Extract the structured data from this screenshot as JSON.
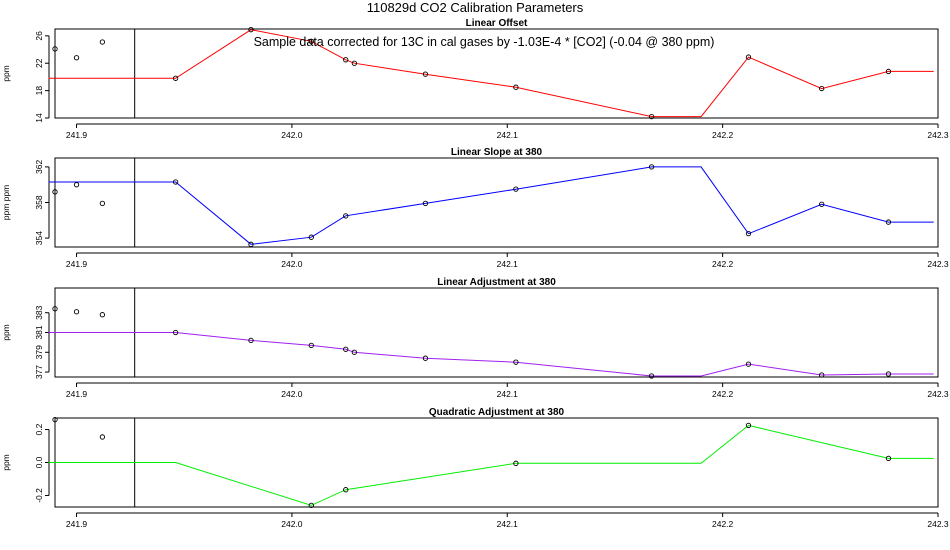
{
  "title": "110829d   CO2 Calibration Parameters",
  "note": "Sample data corrected for 13C in cal gases by -1.03E-4 * [CO2] (-0.04 @ 380 ppm)",
  "chart_data": [
    {
      "type": "line",
      "title": "Linear Offset",
      "ylabel": "ppm",
      "color": "#ff0000",
      "xlim": [
        241.89,
        242.3
      ],
      "ylim": [
        14,
        27
      ],
      "xticks": [
        241.9,
        242.0,
        242.1,
        242.2,
        242.3
      ],
      "xtick_labels": [
        "241.9",
        "242.0",
        "242.1",
        "242.2",
        "242.3"
      ],
      "yticks": [
        14,
        18,
        22,
        26
      ],
      "ytick_labels": [
        "14",
        "18",
        "22",
        "26"
      ],
      "vertical_line_x": 241.927,
      "line": {
        "x": [
          241.887,
          241.946,
          241.981,
          242.009,
          242.025,
          242.029,
          242.062,
          242.104,
          242.167,
          242.19,
          242.212,
          242.246,
          242.277,
          242.298
        ],
        "y": [
          19.8,
          19.8,
          26.9,
          25.2,
          22.5,
          22.0,
          20.4,
          18.5,
          14.2,
          14.2,
          22.9,
          18.3,
          20.8,
          20.8
        ]
      },
      "points": {
        "x": [
          241.89,
          241.9,
          241.912,
          241.946,
          241.981,
          242.009,
          242.025,
          242.029,
          242.062,
          242.104,
          242.167,
          242.212,
          242.246,
          242.277
        ],
        "y": [
          24.1,
          22.8,
          25.1,
          19.8,
          26.9,
          25.2,
          22.5,
          22.0,
          20.4,
          18.5,
          14.2,
          22.9,
          18.3,
          20.8
        ]
      }
    },
    {
      "type": "line",
      "title": "Linear Slope at 380",
      "ylabel": "ppm ppm",
      "color": "#0000ff",
      "xlim": [
        241.89,
        242.3
      ],
      "ylim": [
        353,
        363
      ],
      "xticks": [
        241.9,
        242.0,
        242.1,
        242.2,
        242.3
      ],
      "xtick_labels": [
        "241.9",
        "242.0",
        "242.1",
        "242.2",
        "242.3"
      ],
      "yticks": [
        354,
        358,
        362
      ],
      "ytick_labels": [
        "354",
        "358",
        "362"
      ],
      "vertical_line_x": 241.927,
      "line": {
        "x": [
          241.887,
          241.946,
          241.981,
          242.009,
          242.025,
          242.062,
          242.104,
          242.167,
          242.19,
          242.212,
          242.246,
          242.277,
          242.298
        ],
        "y": [
          360.3,
          360.3,
          353.3,
          354.1,
          356.5,
          357.9,
          359.5,
          362.0,
          362.0,
          354.5,
          357.8,
          355.8,
          355.8
        ]
      },
      "points": {
        "x": [
          241.89,
          241.9,
          241.912,
          241.946,
          241.981,
          242.009,
          242.025,
          242.062,
          242.104,
          242.167,
          242.212,
          242.246,
          242.277
        ],
        "y": [
          359.2,
          360.0,
          357.9,
          360.3,
          353.3,
          354.1,
          356.5,
          357.9,
          359.5,
          362.0,
          354.5,
          357.8,
          355.8
        ]
      }
    },
    {
      "type": "line",
      "title": "Linear Adjustment at 380",
      "ylabel": "ppm",
      "color": "#a020f0",
      "xlim": [
        241.89,
        242.3
      ],
      "ylim": [
        376.5,
        385.5
      ],
      "xticks": [
        241.9,
        242.0,
        242.1,
        242.2,
        242.3
      ],
      "xtick_labels": [
        "241.9",
        "242.0",
        "242.1",
        "242.2",
        "242.3"
      ],
      "yticks": [
        377,
        379,
        381,
        383
      ],
      "ytick_labels": [
        "377",
        "379",
        "381",
        "383"
      ],
      "vertical_line_x": 241.927,
      "line": {
        "x": [
          241.887,
          241.946,
          241.981,
          242.009,
          242.025,
          242.029,
          242.062,
          242.104,
          242.167,
          242.19,
          242.212,
          242.246,
          242.277,
          242.298
        ],
        "y": [
          381.0,
          381.0,
          380.2,
          379.7,
          379.3,
          379.0,
          378.4,
          378.0,
          376.6,
          376.6,
          377.8,
          376.7,
          376.8,
          376.8
        ]
      },
      "points": {
        "x": [
          241.89,
          241.9,
          241.912,
          241.946,
          241.981,
          242.009,
          242.025,
          242.029,
          242.062,
          242.104,
          242.167,
          242.212,
          242.246,
          242.277
        ],
        "y": [
          383.4,
          383.1,
          382.8,
          381.0,
          380.2,
          379.7,
          379.3,
          379.0,
          378.4,
          378.0,
          376.6,
          377.8,
          376.7,
          376.8
        ]
      }
    },
    {
      "type": "line",
      "title": "Quadratic Adjustment at 380",
      "ylabel": "ppm",
      "color": "#00ee00",
      "xlim": [
        241.89,
        242.3
      ],
      "ylim": [
        -0.27,
        0.27
      ],
      "xticks": [
        241.9,
        242.0,
        242.1,
        242.2,
        242.3
      ],
      "xtick_labels": [
        "241.9",
        "242.0",
        "242.1",
        "242.2",
        "242.3"
      ],
      "yticks": [
        -0.2,
        0.0,
        0.2
      ],
      "ytick_labels": [
        "-0.2",
        "0.0",
        "0.2"
      ],
      "vertical_line_x": 241.927,
      "line": {
        "x": [
          241.887,
          241.946,
          242.009,
          242.025,
          242.104,
          242.19,
          242.212,
          242.277,
          242.298
        ],
        "y": [
          0.0,
          0.0,
          -0.26,
          -0.165,
          -0.005,
          -0.005,
          0.225,
          0.025,
          0.025
        ]
      },
      "points": {
        "x": [
          241.89,
          241.912,
          242.009,
          242.025,
          242.104,
          242.212,
          242.277
        ],
        "y": [
          0.26,
          0.155,
          -0.26,
          -0.165,
          -0.005,
          0.225,
          0.025
        ]
      }
    }
  ]
}
